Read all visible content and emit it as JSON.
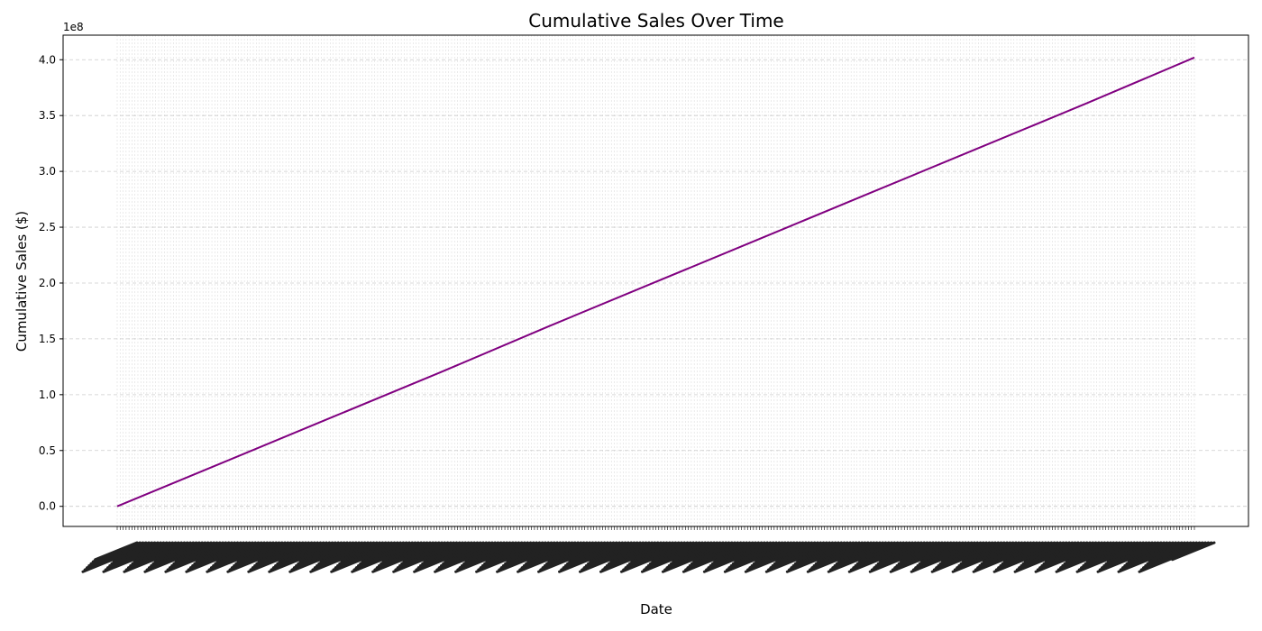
{
  "chart_data": {
    "type": "line",
    "title": "Cumulative Sales Over Time",
    "xlabel": "Date",
    "ylabel": "Cumulative Sales ($)",
    "y_offset_label": "1e8",
    "y_scale_factor": 100000000,
    "ylim": [
      -0.18,
      4.22
    ],
    "yticks": [
      0.0,
      0.5,
      1.0,
      1.5,
      2.0,
      2.5,
      3.0,
      3.5,
      4.0
    ],
    "ytick_labels": [
      "0.0",
      "0.5",
      "1.0",
      "1.5",
      "2.0",
      "2.5",
      "3.0",
      "3.5",
      "4.0"
    ],
    "x_tick_labels_legible": false,
    "grid": true,
    "grid_style": "dashed",
    "line_color": "#800080",
    "series": [
      {
        "x_index_start": 0,
        "x_index_end": 364,
        "values_1e8": [
          0.0,
          0.4,
          0.8,
          1.2,
          1.61,
          2.01,
          2.41,
          2.81,
          3.21,
          3.61,
          4.02
        ]
      }
    ]
  }
}
